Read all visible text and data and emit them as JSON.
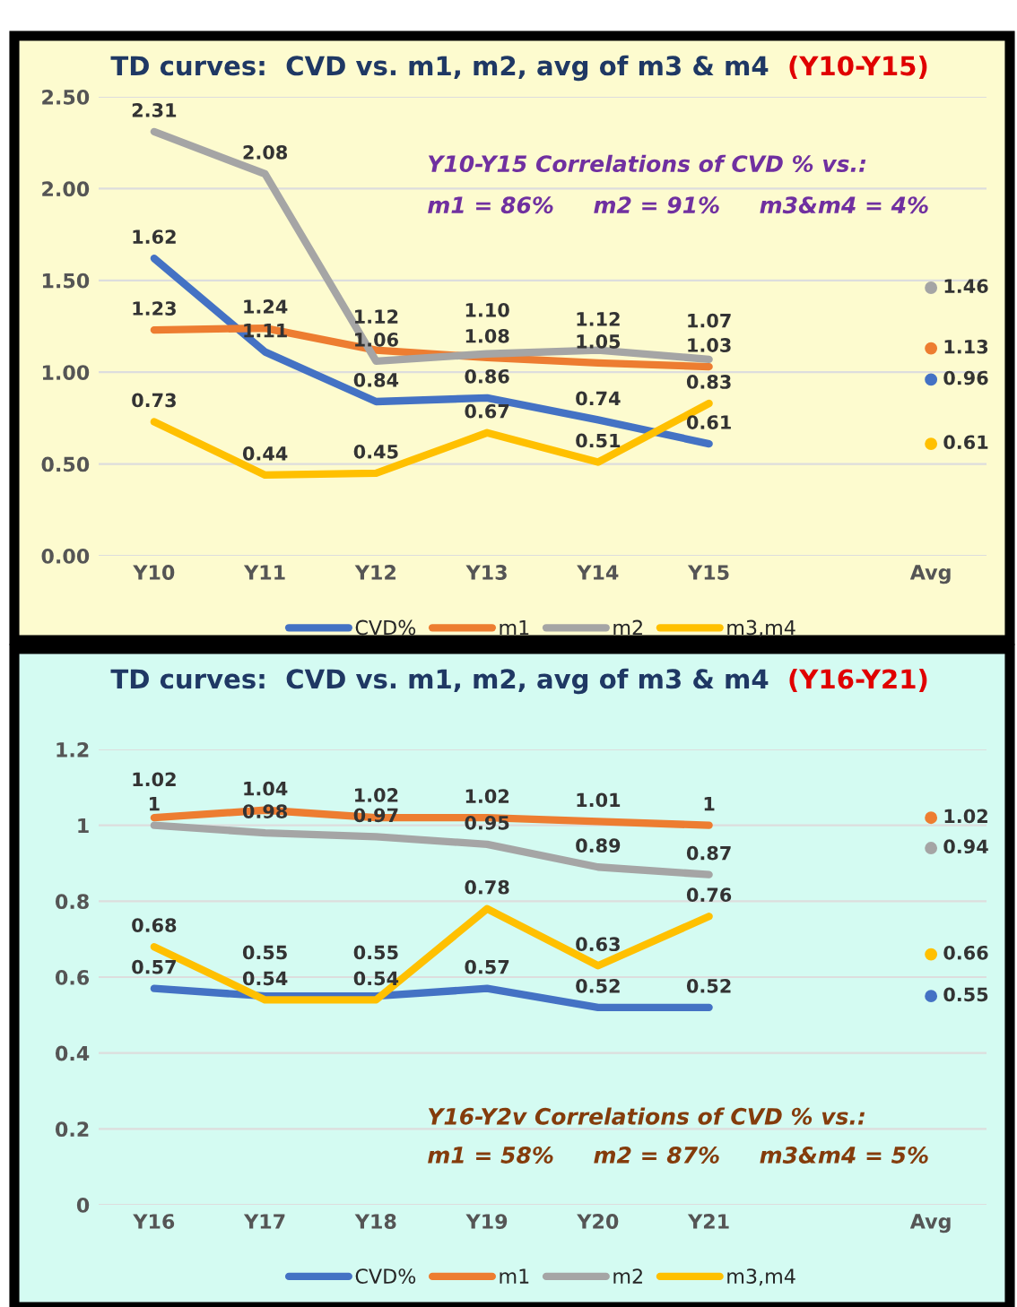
{
  "chart_data": [
    {
      "type": "line",
      "title": "TD curves:  CVD vs. m1, m2, avg of m3 & m4",
      "subtitle": "(Y10-Y15)",
      "categories": [
        "Y10",
        "Y11",
        "Y12",
        "Y13",
        "Y14",
        "Y15",
        null,
        "Avg"
      ],
      "series": [
        {
          "name": "CVD%",
          "color": "#4472c4",
          "values": [
            1.62,
            1.11,
            0.84,
            0.86,
            0.74,
            0.61,
            null,
            0.96
          ],
          "value_labels": [
            "1.62",
            "1.11",
            "0.84",
            "0.86",
            "0.74",
            "0.61",
            null,
            "0.96"
          ]
        },
        {
          "name": "m1",
          "color": "#ed7d31",
          "values": [
            1.23,
            1.24,
            1.12,
            1.08,
            1.05,
            1.03,
            null,
            1.13
          ],
          "value_labels": [
            "1.23",
            "1.24",
            "1.12",
            "1.08",
            "1.05",
            "1.03",
            null,
            "1.13"
          ]
        },
        {
          "name": "m2",
          "color": "#a5a5a5",
          "values": [
            2.31,
            2.08,
            1.06,
            1.1,
            1.12,
            1.07,
            null,
            1.46
          ],
          "value_labels": [
            "2.31",
            "2.08",
            "1.06",
            "1.10",
            "1.12",
            "1.07",
            null,
            "1.46"
          ]
        },
        {
          "name": "m3,m4",
          "color": "#ffc000",
          "values": [
            0.73,
            0.44,
            0.45,
            0.67,
            0.51,
            0.83,
            null,
            0.61
          ],
          "value_labels": [
            "0.73",
            "0.44",
            "0.45",
            "0.67",
            "0.51",
            "0.83",
            null,
            "0.61"
          ]
        }
      ],
      "ylim": [
        0,
        2.5
      ],
      "yticks": [
        {
          "value": 0,
          "label": "0.00"
        },
        {
          "value": 0.5,
          "label": "0.50"
        },
        {
          "value": 1,
          "label": "1.00"
        },
        {
          "value": 1.5,
          "label": "1.50"
        },
        {
          "value": 2,
          "label": "2.00"
        },
        {
          "value": 2.5,
          "label": "2.50"
        }
      ],
      "annotations": [
        "Y10-Y15 Correlations of CVD % vs.:",
        "m1 = 86%     m2 = 91%     m3&m4 = 4%"
      ],
      "grid": "y",
      "legend": "bottom",
      "marker": "none",
      "line_style": "solid"
    },
    {
      "type": "line",
      "title": "TD curves:  CVD vs. m1, m2, avg of m3 & m4",
      "subtitle": "(Y16-Y21)",
      "categories": [
        "Y16",
        "Y17",
        "Y18",
        "Y19",
        "Y20",
        "Y21",
        null,
        "Avg"
      ],
      "series": [
        {
          "name": "CVD%",
          "color": "#4472c4",
          "values": [
            0.57,
            0.55,
            0.55,
            0.57,
            0.52,
            0.52,
            null,
            0.55
          ],
          "value_labels": [
            "0.57",
            "0.55",
            "0.55",
            "0.57",
            "0.52",
            "0.52",
            null,
            "0.55"
          ]
        },
        {
          "name": "m1",
          "color": "#ed7d31",
          "values": [
            1.02,
            1.04,
            1.02,
            1.02,
            1.01,
            1,
            null,
            1.02
          ],
          "value_labels": [
            "1.02",
            "1.04",
            "1.02",
            "1.02",
            "1.01",
            "1",
            null,
            "1.02"
          ]
        },
        {
          "name": "m2",
          "color": "#a5a5a5",
          "values": [
            1,
            0.98,
            0.97,
            0.95,
            0.89,
            0.87,
            null,
            0.94
          ],
          "value_labels": [
            "1",
            "0.98",
            "0.97",
            "0.95",
            "0.89",
            "0.87",
            null,
            "0.94"
          ]
        },
        {
          "name": "m3,m4",
          "color": "#ffc000",
          "values": [
            0.68,
            0.54,
            0.54,
            0.78,
            0.63,
            0.76,
            null,
            0.66
          ],
          "value_labels": [
            "0.68",
            "0.54",
            "0.54",
            "0.78",
            "0.63",
            "0.76",
            null,
            "0.66"
          ]
        }
      ],
      "ylim": [
        0,
        1.2
      ],
      "yticks": [
        0,
        0.2,
        0.4,
        0.6,
        0.8,
        1,
        1.2
      ],
      "annotations": [
        "Y16-Y2v Correlations of CVD % vs.:",
        "m1 = 58%     m2 = 87%     m3&m4 = 5%"
      ],
      "grid": "y",
      "legend": "bottom",
      "marker": "none",
      "line_style": "solid"
    }
  ]
}
